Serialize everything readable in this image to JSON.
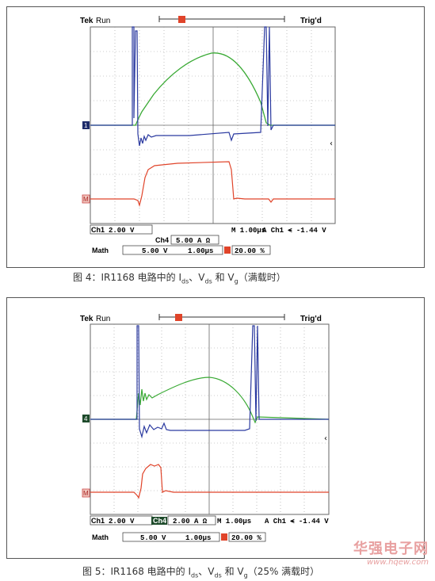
{
  "figures": [
    {
      "header": {
        "brand": "Tek",
        "mode": "Run",
        "trig": "Trig'd",
        "trig_marker": "T"
      },
      "channel_markers": {
        "ch_ref": "1",
        "math_ref": "M"
      },
      "readouts": {
        "ch1_scale": "Ch1",
        "ch1_value": "2.00 V",
        "ch4_label": "Ch4",
        "ch4_value": "5.00 A Ω",
        "timebase": "M 1.00µs",
        "trigger": "A  Ch1  ⪪  -1.44 V",
        "math_label": "Math",
        "math_volts": "5.00 V",
        "math_time": "1.00µs",
        "percent": "20.00 %"
      },
      "caption": {
        "prefix": "图 4：IR1168 电路中的 I",
        "s1": "ds",
        "mid1": "、V",
        "s2": "ds",
        "mid2": " 和 V",
        "s3": "g",
        "suffix": "（满载时）"
      },
      "colors": {
        "green": "#3aaa35",
        "blue": "#2b3aa0",
        "red": "#e0442a",
        "grid": "#888888"
      }
    },
    {
      "header": {
        "brand": "Tek",
        "mode": "Run",
        "trig": "Trig'd",
        "trig_marker": "T"
      },
      "channel_markers": {
        "ch_ref": "4",
        "math_ref": "M"
      },
      "readouts": {
        "ch1_scale": "Ch1",
        "ch1_value": "2.00 V",
        "ch4_label": "Ch4",
        "ch4_value": "2.00 A Ω",
        "timebase": "M 1.00µs",
        "trigger": "A  Ch1  ⪪  -1.44 V",
        "math_label": "Math",
        "math_volts": "5.00 V",
        "math_time": "1.00µs",
        "percent": "20.00 %"
      },
      "caption": {
        "prefix": "图 5：IR1168 电路中的 I",
        "s1": "ds",
        "mid1": "、V",
        "s2": "ds",
        "mid2": " 和 V",
        "s3": "g",
        "suffix": "（25% 满载时）"
      },
      "colors": {
        "green": "#3aaa35",
        "blue": "#2b3aa0",
        "red": "#e0442a",
        "grid": "#888888"
      }
    }
  ],
  "watermark": {
    "cn": "华强电子网",
    "url": "www.hqew.com"
  }
}
